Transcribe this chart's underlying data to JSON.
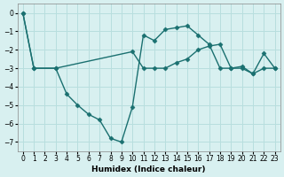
{
  "xlabel": "Humidex (Indice chaleur)",
  "background_color": "#d8f0f0",
  "line_color": "#1a7070",
  "grid_color": "#b8dede",
  "xlim": [
    -0.5,
    23.5
  ],
  "ylim": [
    -7.5,
    0.5
  ],
  "yticks": [
    0,
    -1,
    -2,
    -3,
    -4,
    -5,
    -6,
    -7
  ],
  "xticks": [
    0,
    1,
    2,
    3,
    4,
    5,
    6,
    7,
    8,
    9,
    10,
    11,
    12,
    13,
    14,
    15,
    16,
    17,
    18,
    19,
    20,
    21,
    22,
    23
  ],
  "series1_x": [
    0,
    1,
    3,
    10,
    11,
    12,
    13,
    14,
    15,
    16,
    17,
    18,
    19,
    20,
    21,
    22,
    23
  ],
  "series1_y": [
    0,
    -3,
    -3,
    -2.1,
    -3.0,
    -3.0,
    -3.0,
    -2.7,
    -2.5,
    -2.0,
    -1.8,
    -1.7,
    -3.0,
    -3.0,
    -3.3,
    -3.0,
    -3.0
  ],
  "series2_x": [
    0,
    1,
    3,
    4,
    5,
    6,
    7,
    8,
    9,
    10,
    11,
    12,
    13,
    14,
    15,
    16,
    17,
    18,
    19,
    20,
    21,
    22,
    23
  ],
  "series2_y": [
    0,
    -3,
    -3,
    -4.4,
    -5.0,
    -5.5,
    -5.8,
    -6.8,
    -7.0,
    -5.1,
    -1.2,
    -1.5,
    -0.9,
    -0.8,
    -0.7,
    -1.2,
    -1.7,
    -3.0,
    -3.0,
    -2.9,
    -3.3,
    -2.2,
    -3.0
  ],
  "marker_style": "D",
  "marker_size": 2.5,
  "line_width": 1.0
}
